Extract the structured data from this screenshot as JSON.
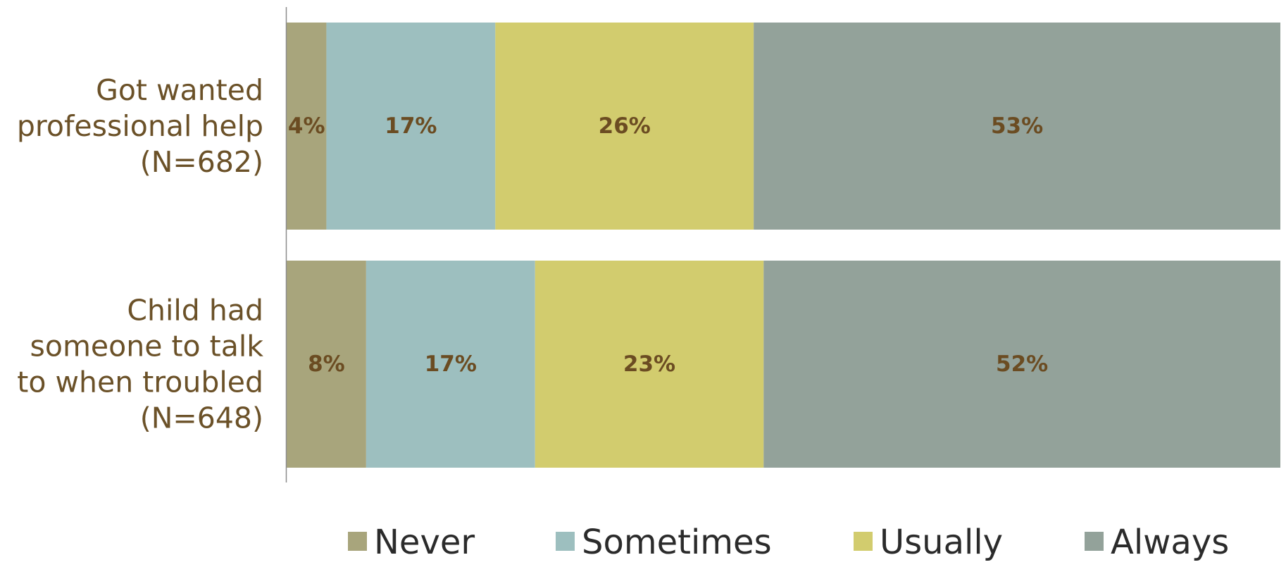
{
  "chart_data": {
    "type": "bar",
    "orientation": "horizontal",
    "stacked": true,
    "title": "",
    "xlabel": "",
    "ylabel": "",
    "xlim": [
      0,
      100
    ],
    "grid": false,
    "legend_position": "bottom",
    "categories": [
      [
        "Got wanted",
        "professional help",
        "(N=682)"
      ],
      [
        "Child had",
        "someone to talk",
        "to when troubled",
        "(N=648)"
      ]
    ],
    "series": [
      {
        "name": "Never",
        "values": [
          4,
          8
        ],
        "labels": [
          "4%",
          "8%"
        ],
        "color": "#a8a57c"
      },
      {
        "name": "Sometimes",
        "values": [
          17,
          17
        ],
        "labels": [
          "17%",
          "17%"
        ],
        "color": "#9dbfbf"
      },
      {
        "name": "Usually",
        "values": [
          26,
          23
        ],
        "labels": [
          "26%",
          "23%"
        ],
        "color": "#d2cc6e"
      },
      {
        "name": "Always",
        "values": [
          53,
          52
        ],
        "labels": [
          "53%",
          "52%"
        ],
        "color": "#93a29a"
      }
    ]
  }
}
